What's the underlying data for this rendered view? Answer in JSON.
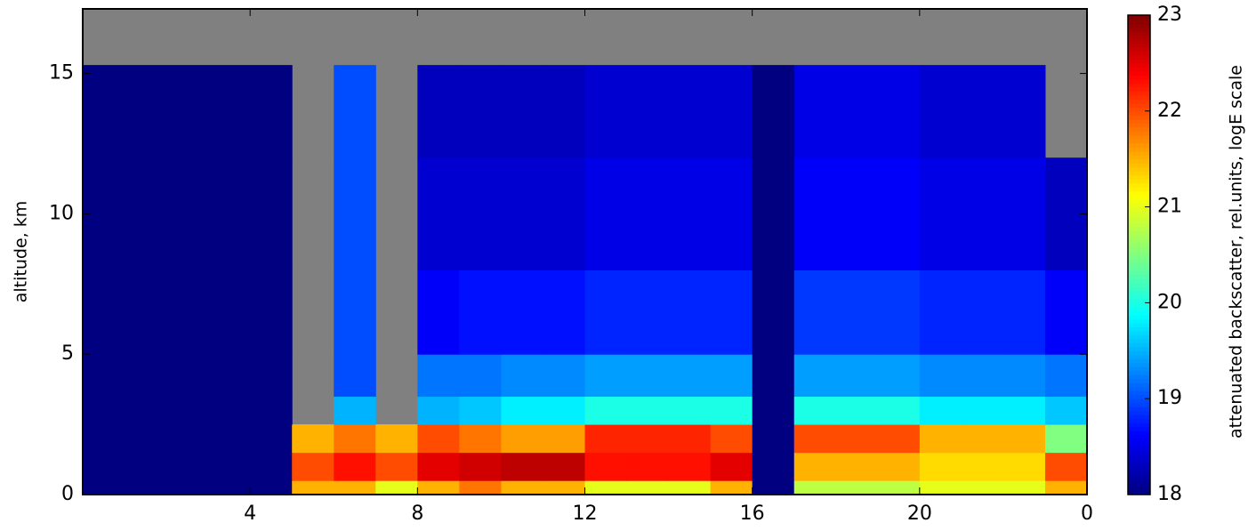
{
  "chart_data": {
    "type": "heatmap",
    "ylabel": "altitude, km",
    "colorbar_label": "attenuated backscatter, rel.units, logE scale",
    "x": [
      0,
      1,
      2,
      3,
      4,
      5,
      6,
      7,
      8,
      9,
      10,
      11,
      12,
      13,
      14,
      15,
      16,
      17,
      18,
      19,
      20,
      21,
      22,
      23,
      24
    ],
    "y": [
      0,
      0.5,
      1.5,
      2.5,
      3.5,
      5,
      8,
      12,
      15.3,
      17.3
    ],
    "z": [
      [
        18,
        18,
        18,
        18,
        18,
        21.5,
        21.5,
        21,
        21.5,
        21.8,
        21.5,
        21.5,
        21,
        21,
        21,
        21.5,
        18,
        20.8,
        20.8,
        20.8,
        21,
        21,
        21,
        21.5
      ],
      [
        18,
        18,
        18,
        18,
        18,
        22,
        22.3,
        22,
        22.5,
        22.6,
        22.7,
        22.7,
        22.3,
        22.3,
        22.3,
        22.5,
        18,
        21.5,
        21.5,
        21.5,
        21.3,
        21.3,
        21.3,
        22
      ],
      [
        18,
        18,
        18,
        18,
        18,
        21.5,
        21.8,
        21.5,
        22,
        21.8,
        21.6,
        21.6,
        22.2,
        22.2,
        22.2,
        22,
        18,
        22,
        22,
        22,
        21.5,
        21.5,
        21.5,
        20.5
      ],
      [
        18,
        18,
        18,
        18,
        18,
        null,
        19.5,
        null,
        19.5,
        19.6,
        19.8,
        19.8,
        20,
        20,
        20,
        20,
        18,
        20,
        20,
        20,
        19.8,
        19.8,
        19.8,
        19.6
      ],
      [
        18,
        18,
        18,
        18,
        18,
        null,
        19,
        null,
        19.2,
        19.2,
        19.3,
        19.3,
        19.4,
        19.4,
        19.4,
        19.4,
        18,
        19.4,
        19.4,
        19.4,
        19.3,
        19.3,
        19.3,
        19.2
      ],
      [
        18,
        18,
        18,
        18,
        18,
        null,
        19,
        null,
        18.6,
        18.7,
        18.7,
        18.7,
        18.8,
        18.8,
        18.8,
        18.8,
        18,
        18.9,
        18.9,
        18.9,
        18.8,
        18.8,
        18.8,
        18.6
      ],
      [
        18,
        18,
        18,
        18,
        18,
        null,
        19,
        null,
        18.4,
        18.4,
        18.4,
        18.4,
        18.5,
        18.5,
        18.5,
        18.5,
        18,
        18.6,
        18.6,
        18.6,
        18.5,
        18.5,
        18.5,
        18.3
      ],
      [
        18,
        18,
        18,
        18,
        18,
        null,
        19,
        null,
        18.3,
        18.3,
        18.3,
        18.3,
        18.4,
        18.4,
        18.4,
        18.4,
        18,
        18.5,
        18.5,
        18.5,
        18.4,
        18.4,
        18.4,
        null
      ],
      [
        null,
        null,
        null,
        null,
        null,
        null,
        null,
        null,
        null,
        null,
        null,
        null,
        null,
        null,
        null,
        null,
        null,
        null,
        null,
        null,
        null,
        null,
        null,
        null
      ]
    ],
    "xlim": [
      0,
      24
    ],
    "xticks": [
      4,
      8,
      12,
      16,
      20,
      {
        "value": 24,
        "label": "0"
      }
    ],
    "ylim": [
      0,
      17.3
    ],
    "yticks": [
      0,
      5,
      10,
      15
    ],
    "clim": [
      18,
      23
    ],
    "cticks": [
      18,
      19,
      20,
      21,
      22,
      23
    ],
    "colormap": "jet",
    "missing_color": "#808080"
  }
}
